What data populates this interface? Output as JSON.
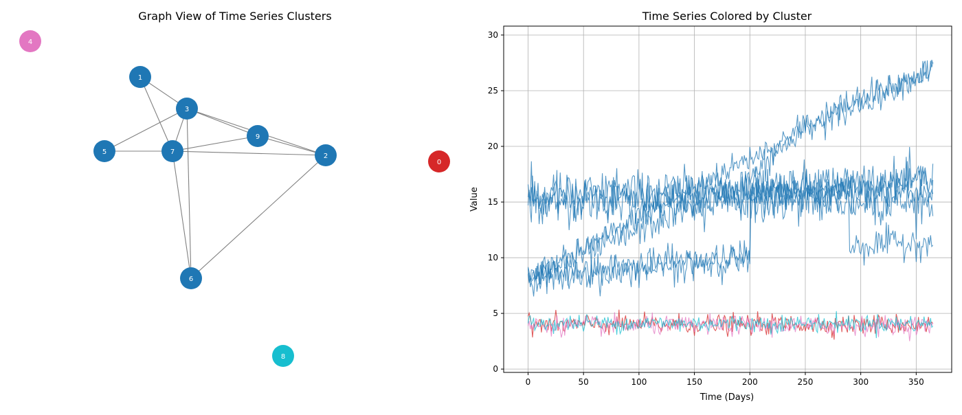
{
  "chart_data": [
    {
      "type": "network",
      "title": "Graph View of Time Series Clusters",
      "nodes": [
        {
          "label": "0",
          "cluster_color": "#d62728"
        },
        {
          "label": "1",
          "cluster_color": "#1f77b4"
        },
        {
          "label": "2",
          "cluster_color": "#1f77b4"
        },
        {
          "label": "3",
          "cluster_color": "#1f77b4"
        },
        {
          "label": "4",
          "cluster_color": "#e377c2"
        },
        {
          "label": "5",
          "cluster_color": "#1f77b4"
        },
        {
          "label": "6",
          "cluster_color": "#1f77b4"
        },
        {
          "label": "7",
          "cluster_color": "#1f77b4"
        },
        {
          "label": "8",
          "cluster_color": "#17becf"
        },
        {
          "label": "9",
          "cluster_color": "#1f77b4"
        }
      ],
      "edges": [
        [
          "1",
          "3"
        ],
        [
          "1",
          "7"
        ],
        [
          "3",
          "5"
        ],
        [
          "3",
          "7"
        ],
        [
          "3",
          "9"
        ],
        [
          "3",
          "2"
        ],
        [
          "3",
          "6"
        ],
        [
          "5",
          "7"
        ],
        [
          "7",
          "9"
        ],
        [
          "7",
          "2"
        ],
        [
          "7",
          "6"
        ],
        [
          "9",
          "2"
        ],
        [
          "2",
          "6"
        ]
      ],
      "edge_color": "#808080"
    },
    {
      "type": "line",
      "title": "Time Series Colored by Cluster",
      "xlabel": "Time (Days)",
      "ylabel": "Value",
      "xlim": [
        -22,
        382
      ],
      "ylim": [
        -0.3,
        30.8
      ],
      "xticks": [
        0,
        50,
        100,
        150,
        200,
        250,
        300,
        350
      ],
      "yticks": [
        0,
        5,
        10,
        15,
        20,
        25,
        30
      ],
      "grid": true,
      "x_range": [
        0,
        365
      ],
      "series": [
        {
          "color": "#1f77b4",
          "noise": 1.6,
          "points": [
            [
              0,
              15
            ],
            [
              365,
              15
            ]
          ]
        },
        {
          "color": "#1f77b4",
          "noise": 1.6,
          "points": [
            [
              0,
              15.2
            ],
            [
              365,
              16
            ]
          ]
        },
        {
          "color": "#1f77b4",
          "noise": 1.6,
          "points": [
            [
              0,
              15.5
            ],
            [
              365,
              17
            ]
          ]
        },
        {
          "color": "#1f77b4",
          "noise": 1.0,
          "points": [
            [
              0,
              8
            ],
            [
              200,
              19
            ],
            [
              365,
              27
            ]
          ]
        },
        {
          "color": "#1f77b4",
          "noise": 1.2,
          "points": [
            [
              0,
              8
            ],
            [
              200,
              17
            ],
            [
              250,
              22
            ],
            [
              365,
              27
            ]
          ]
        },
        {
          "color": "#1f77b4",
          "noise": 1.2,
          "points": [
            [
              0,
              8.5
            ],
            [
              200,
              10
            ],
            [
              201,
              15.5
            ],
            [
              365,
              17
            ]
          ]
        },
        {
          "color": "#1f77b4",
          "noise": 1.2,
          "points": [
            [
              0,
              8
            ],
            [
              200,
              10
            ],
            [
              201,
              16
            ],
            [
              289,
              16
            ],
            [
              290,
              11
            ],
            [
              365,
              11.5
            ]
          ]
        },
        {
          "color": "#d62728",
          "noise": 0.75,
          "points": [
            [
              0,
              4
            ],
            [
              365,
              4
            ]
          ]
        },
        {
          "color": "#e377c2",
          "noise": 0.7,
          "points": [
            [
              0,
              3.9
            ],
            [
              365,
              3.9
            ]
          ]
        },
        {
          "color": "#17becf",
          "noise": 0.65,
          "points": [
            [
              0,
              4.1
            ],
            [
              365,
              4.1
            ]
          ]
        }
      ]
    }
  ]
}
